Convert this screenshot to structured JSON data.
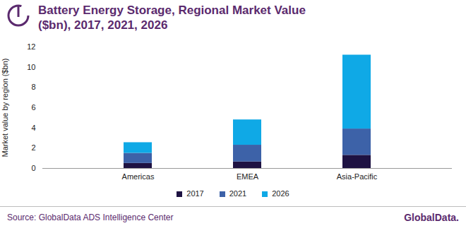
{
  "chart_data": {
    "type": "bar",
    "title": "Battery Energy Storage, Regional Market Value ($bn), 2017, 2021, 2026",
    "y_label": "Market value by region ($bn)",
    "categories": [
      "Americas",
      "EMEA",
      "Asia-Pacific"
    ],
    "series": [
      {
        "name": "2017",
        "color": "#1e1242",
        "values": [
          0.5,
          0.65,
          1.3
        ]
      },
      {
        "name": "2021",
        "color": "#3d62a8",
        "values": [
          1.0,
          1.65,
          2.6
        ]
      },
      {
        "name": "2026",
        "color": "#0fa9e6",
        "values": [
          1.05,
          2.5,
          7.3
        ]
      }
    ],
    "stacked": true,
    "grid": false,
    "legend": "bottom",
    "ylim": [
      0,
      12
    ],
    "yticks": [
      0,
      2,
      4,
      6,
      8,
      10,
      12
    ],
    "source": "Source: GlobalData ADS Intelligence Center",
    "brand": "GlobalData."
  }
}
